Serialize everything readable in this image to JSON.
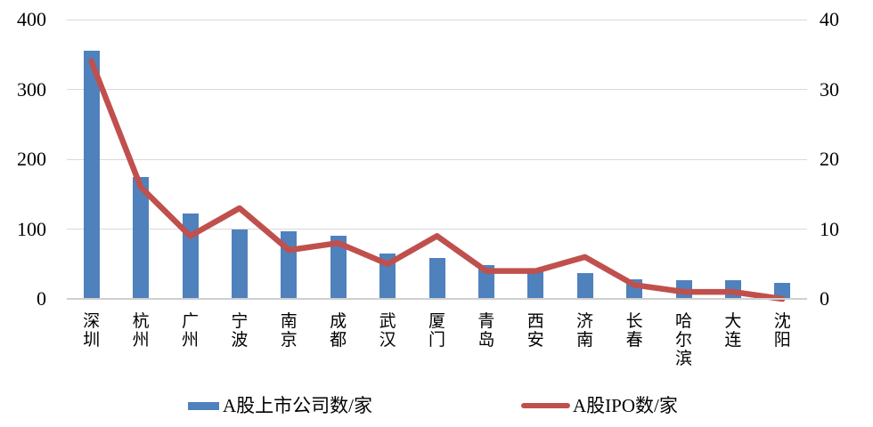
{
  "chart_data": {
    "type": "bar",
    "subtype": "bar-line-combo",
    "categories": [
      "深圳",
      "杭州",
      "广州",
      "宁波",
      "南京",
      "成都",
      "武汉",
      "厦门",
      "青岛",
      "西安",
      "济南",
      "长春",
      "哈尔滨",
      "大连",
      "沈阳"
    ],
    "series": [
      {
        "name": "A股上市公司数/家",
        "type": "bar",
        "axis": "left",
        "color": "#4f81bd",
        "values": [
          355,
          175,
          122,
          100,
          97,
          90,
          65,
          58,
          48,
          40,
          37,
          28,
          27,
          27,
          23
        ]
      },
      {
        "name": "A股IPO数/家",
        "type": "line",
        "axis": "right",
        "color": "#c0504d",
        "values": [
          34,
          16,
          9,
          13,
          7,
          8,
          5,
          9,
          4,
          4,
          6,
          2,
          1,
          1,
          0
        ]
      }
    ],
    "title": "",
    "xlabel": "",
    "ylabel": "",
    "left_axis": {
      "min": 0,
      "max": 400,
      "ticks": [
        400,
        300,
        200,
        100,
        0
      ]
    },
    "right_axis": {
      "min": 0,
      "max": 40,
      "ticks": [
        40,
        30,
        20,
        10,
        0
      ]
    },
    "grid": true,
    "legend_position": "bottom"
  },
  "legend": {
    "bar_label": "A股上市公司数/家",
    "line_label": "A股IPO数/家"
  },
  "colors": {
    "bar": "#4f81bd",
    "line": "#c0504d",
    "gridline": "#d9d9d9",
    "text": "#000000"
  }
}
